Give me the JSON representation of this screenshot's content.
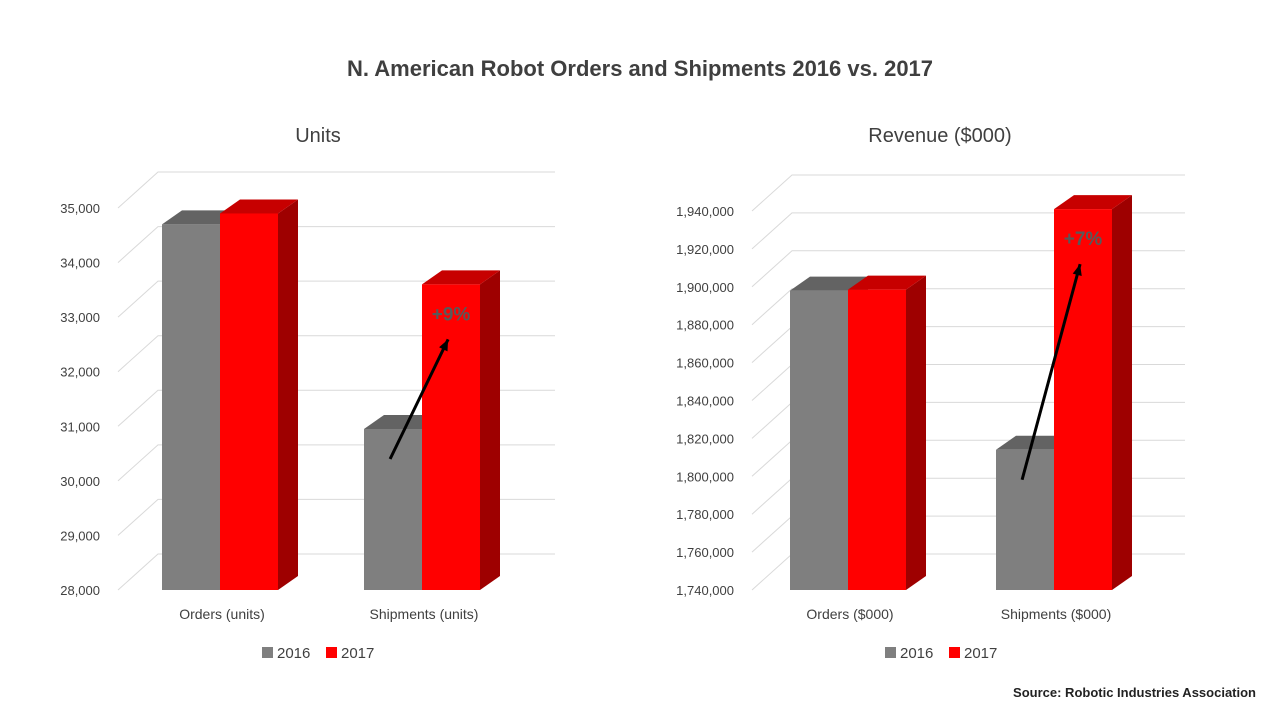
{
  "title": "N. American Robot Orders and Shipments 2016 vs. 2017",
  "source": "Source: Robotic Industries Association",
  "colors": {
    "2016": "#7f7f7f",
    "2017": "#ff0000",
    "grid": "#d9d9d9",
    "text": "#404040",
    "annotation": "#595959"
  },
  "chart_data": [
    {
      "type": "bar",
      "title": "Units",
      "categories": [
        "Orders (units)",
        "Shipments (units)"
      ],
      "series": [
        {
          "name": "2016",
          "values": [
            34700,
            30950
          ]
        },
        {
          "name": "2017",
          "values": [
            34900,
            33600
          ]
        }
      ],
      "ylim": [
        28000,
        35000
      ],
      "yticks": [
        "28,000",
        "29,000",
        "30,000",
        "31,000",
        "32,000",
        "33,000",
        "34,000",
        "35,000"
      ],
      "grid": true,
      "legend": "bottom",
      "annotation": {
        "text": "+9%",
        "category": 1
      }
    },
    {
      "type": "bar",
      "title": "Revenue ($000)",
      "categories": [
        "Orders ($000)",
        "Shipments ($000)"
      ],
      "series": [
        {
          "name": "2016",
          "values": [
            1898000,
            1814000
          ]
        },
        {
          "name": "2017",
          "values": [
            1898500,
            1941000
          ]
        }
      ],
      "ylim": [
        1740000,
        1940000
      ],
      "yticks": [
        "1,740,000",
        "1,760,000",
        "1,780,000",
        "1,800,000",
        "1,820,000",
        "1,840,000",
        "1,860,000",
        "1,880,000",
        "1,900,000",
        "1,920,000",
        "1,940,000"
      ],
      "grid": true,
      "legend": "bottom",
      "annotation": {
        "text": "+7%",
        "category": 1
      }
    }
  ]
}
